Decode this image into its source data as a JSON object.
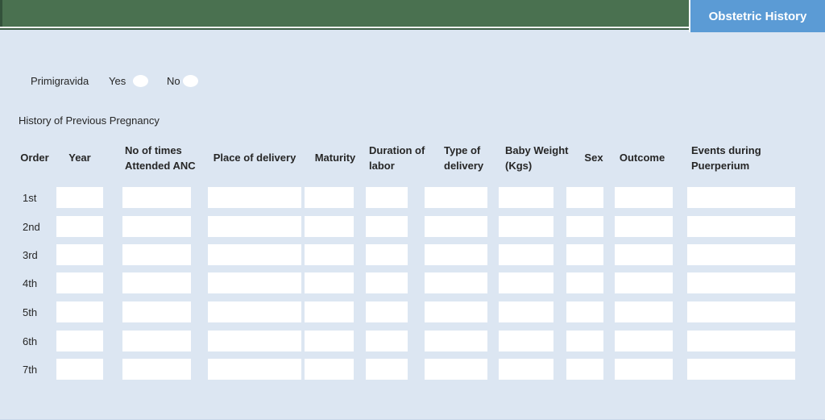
{
  "header": {
    "tab_label": "Obstetric History"
  },
  "primigravida": {
    "label": "Primigravida",
    "yes_label": "Yes",
    "no_label": "No"
  },
  "section_title": "History of Previous Pregnancy",
  "table": {
    "columns": [
      {
        "id": "order",
        "label": "Order"
      },
      {
        "id": "year",
        "label": "Year"
      },
      {
        "id": "anc",
        "label": "No of times Attended ANC"
      },
      {
        "id": "place",
        "label": "Place of delivery"
      },
      {
        "id": "maturity",
        "label": "Maturity"
      },
      {
        "id": "duration",
        "label": "Duration of labor"
      },
      {
        "id": "type",
        "label": "Type of delivery"
      },
      {
        "id": "baby_weight",
        "label": "Baby Weight (Kgs)"
      },
      {
        "id": "sex",
        "label": "Sex"
      },
      {
        "id": "outcome",
        "label": "Outcome"
      },
      {
        "id": "events",
        "label": "Events during Puerperium"
      }
    ],
    "rows": [
      "1st",
      "2nd",
      "3rd",
      "4th",
      "5th",
      "6th",
      "7th"
    ],
    "cell_value": ""
  },
  "colors": {
    "header_green": "#4a7150",
    "tab_blue": "#5b9bd5",
    "background": "#dce6f2",
    "field_white": "#ffffff"
  }
}
